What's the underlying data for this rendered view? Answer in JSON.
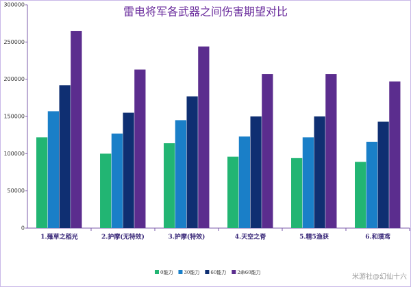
{
  "chart_data": {
    "type": "bar",
    "title": "雷电将军各武器之间伤害期望对比",
    "categories": [
      "1.薙草之稻光",
      "2.护摩(无特效)",
      "3.护摩(特效)",
      "4.天空之脊",
      "5.精5渔获",
      "6.和璞鸢"
    ],
    "series": [
      {
        "name": "0能力",
        "color": "#22b573",
        "values": [
          122000,
          100000,
          114000,
          96000,
          94000,
          89000
        ]
      },
      {
        "name": "30能力",
        "color": "#1a7fc8",
        "values": [
          157000,
          127000,
          145000,
          123000,
          122000,
          116000
        ]
      },
      {
        "name": "60能力",
        "color": "#0f2f72",
        "values": [
          192000,
          155000,
          177000,
          150000,
          150000,
          143000
        ]
      },
      {
        "name": "2命60能力",
        "color": "#5b2d8e",
        "values": [
          265000,
          213000,
          244000,
          207000,
          207000,
          197000
        ]
      }
    ],
    "ylim": [
      0,
      300000
    ],
    "yticks": [
      0,
      50000,
      100000,
      150000,
      200000,
      250000,
      300000
    ],
    "grid": false
  },
  "watermark": "米游社@幻仙十六"
}
